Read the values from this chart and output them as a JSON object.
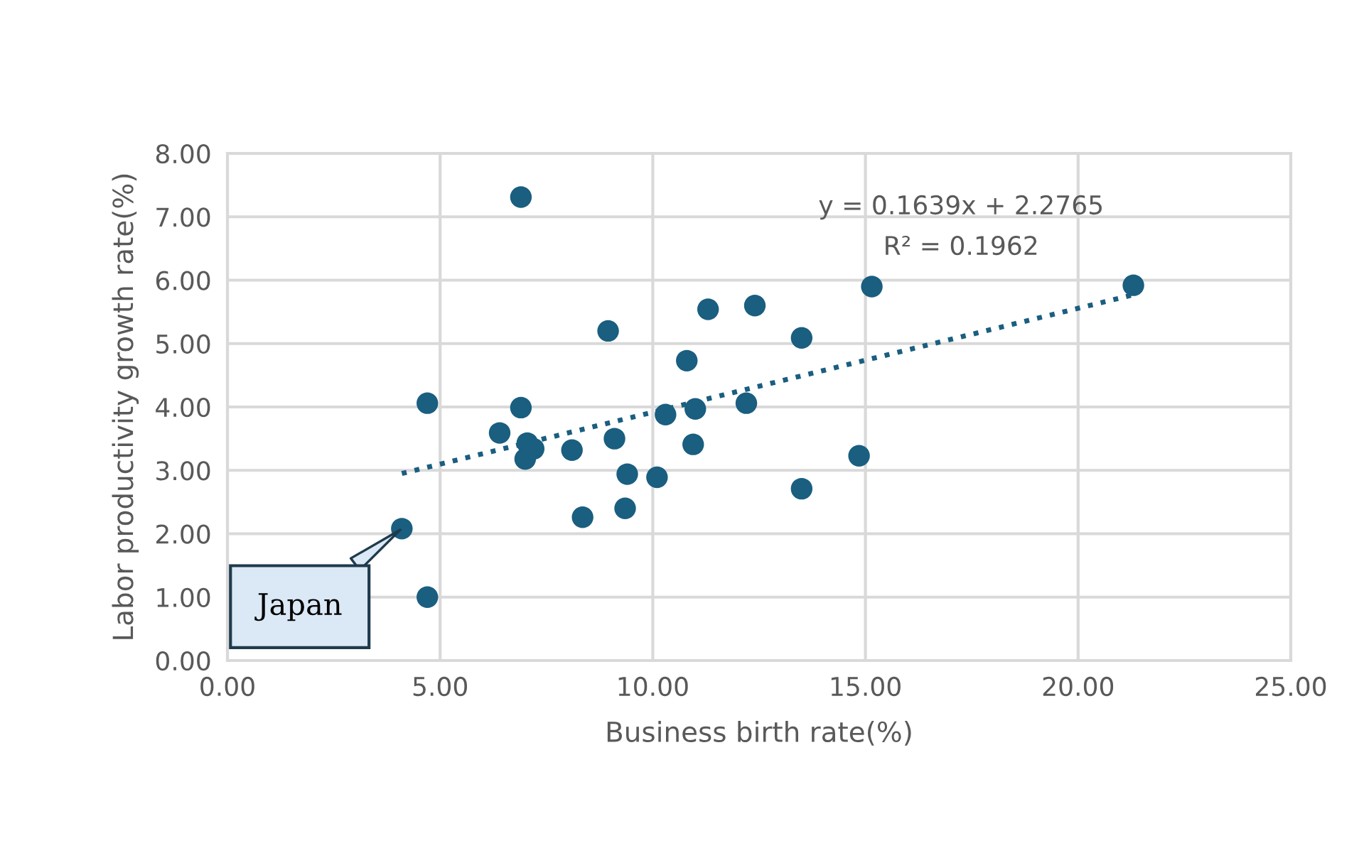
{
  "chart_data": {
    "type": "scatter",
    "xlabel": "Business birth rate(%)",
    "ylabel": "Labor productivity growth rate(%)",
    "xlim": [
      0,
      25
    ],
    "ylim": [
      0,
      8
    ],
    "xticks": [
      {
        "value": 0,
        "label": "0.00"
      },
      {
        "value": 5,
        "label": "5.00"
      },
      {
        "value": 10,
        "label": "10.00"
      },
      {
        "value": 15,
        "label": "15.00"
      },
      {
        "value": 20,
        "label": "20.00"
      },
      {
        "value": 25,
        "label": "25.00"
      }
    ],
    "yticks": [
      {
        "value": 0,
        "label": "0.00"
      },
      {
        "value": 1,
        "label": "1.00"
      },
      {
        "value": 2,
        "label": "2.00"
      },
      {
        "value": 3,
        "label": "3.00"
      },
      {
        "value": 4,
        "label": "4.00"
      },
      {
        "value": 5,
        "label": "5.00"
      },
      {
        "value": 6,
        "label": "6.00"
      },
      {
        "value": 7,
        "label": "7.00"
      },
      {
        "value": 8,
        "label": "8.00"
      }
    ],
    "grid": true,
    "legend": false,
    "marker": "circle",
    "series": [
      {
        "color": "#1a5e80",
        "x": [
          4.7,
          4.1,
          4.7,
          6.4,
          6.9,
          6.9,
          7.05,
          7.0,
          7.2,
          8.1,
          8.35,
          9.1,
          8.95,
          9.35,
          9.4,
          10.1,
          10.3,
          10.8,
          10.95,
          11.0,
          11.3,
          12.4,
          12.2,
          13.5,
          13.5,
          14.85,
          15.15,
          21.3
        ],
        "values": [
          1.0,
          2.08,
          4.06,
          3.59,
          3.99,
          7.31,
          3.43,
          3.18,
          3.34,
          3.32,
          2.26,
          3.5,
          5.2,
          2.4,
          2.94,
          2.89,
          3.88,
          4.73,
          3.41,
          3.97,
          5.54,
          5.6,
          4.06,
          5.09,
          2.71,
          3.23,
          5.9,
          5.92
        ]
      },
      {
        "type": "line",
        "color": "#1a5e80",
        "line_style": "dotted",
        "marker": "none",
        "x": [
          4.1,
          21.3
        ],
        "values": [
          2.95,
          5.77
        ]
      }
    ],
    "annotations": [
      "y = 0.1639x + 2.2765",
      "R² = 0.1962",
      {
        "text": "Japan",
        "x": 4.1,
        "y": 2.08
      }
    ]
  }
}
